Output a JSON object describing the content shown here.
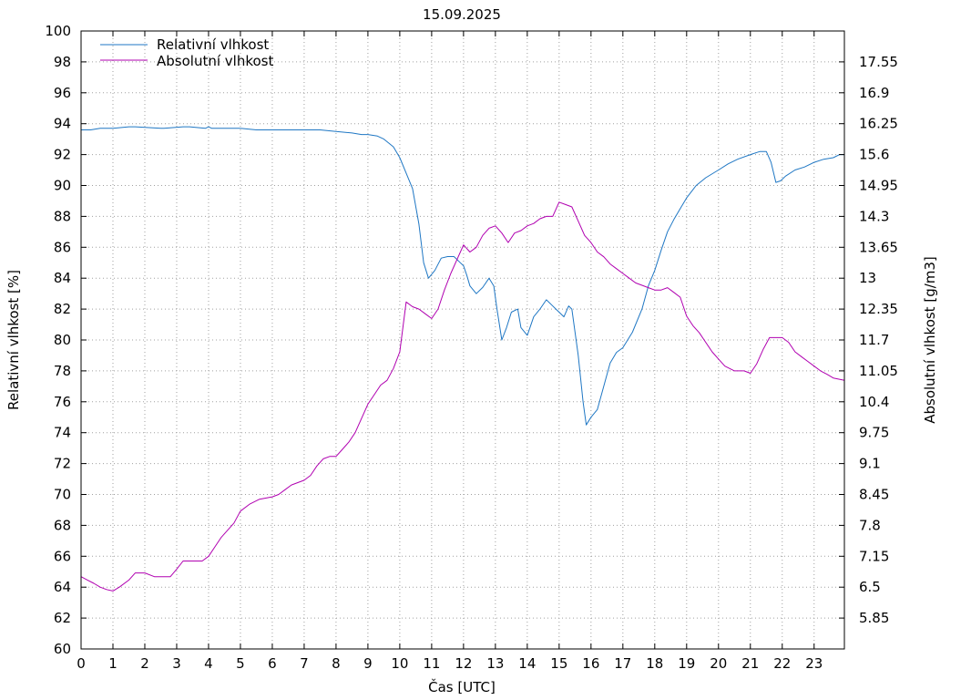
{
  "chart_data": {
    "type": "line",
    "title": "15.09.2025",
    "xlabel": "Čas [UTC]",
    "ylabel_left": "Relativní vlhkost [%]",
    "ylabel_right": "Absolutní vlhkost [g/m3]",
    "xlim": [
      0,
      23.95
    ],
    "ylim_left": [
      60,
      100
    ],
    "ylim_right": [
      5.2,
      18.2
    ],
    "x_ticks": [
      "0",
      "1",
      "2",
      "3",
      "4",
      "5",
      "6",
      "7",
      "8",
      "9",
      "10",
      "11",
      "12",
      "13",
      "14",
      "15",
      "16",
      "17",
      "18",
      "19",
      "20",
      "21",
      "22",
      "23"
    ],
    "y_ticks_left": [
      "60",
      "62",
      "64",
      "66",
      "68",
      "70",
      "72",
      "74",
      "76",
      "78",
      "80",
      "82",
      "84",
      "86",
      "88",
      "90",
      "92",
      "94",
      "96",
      "98",
      "100"
    ],
    "y_ticks_right": [
      "5.85",
      "6.5",
      "7.15",
      "7.8",
      "8.45",
      "9.1",
      "9.75",
      "10.4",
      "11.05",
      "11.7",
      "12.35",
      "13",
      "13.65",
      "14.3",
      "14.95",
      "15.6",
      "16.25",
      "16.9",
      "17.55"
    ],
    "grid": true,
    "legend_position": "top-left",
    "series": [
      {
        "name": "Relativní vlhkost",
        "axis": "left",
        "color": "#1f77c4",
        "x": [
          0,
          0.3,
          0.6,
          1.0,
          1.5,
          1.7,
          2.5,
          2.6,
          3.2,
          3.4,
          3.9,
          4.0,
          4.1,
          5.0,
          5.5,
          7.0,
          7.5,
          8.0,
          8.5,
          8.8,
          9.0,
          9.3,
          9.5,
          9.8,
          10.0,
          10.2,
          10.4,
          10.6,
          10.75,
          10.9,
          11.1,
          11.3,
          11.5,
          11.7,
          11.9,
          12.0,
          12.1,
          12.2,
          12.4,
          12.6,
          12.8,
          12.95,
          13.05,
          13.2,
          13.35,
          13.5,
          13.7,
          13.8,
          14.0,
          14.2,
          14.4,
          14.6,
          14.8,
          14.9,
          15.0,
          15.15,
          15.3,
          15.4,
          15.6,
          15.75,
          15.85,
          16.0,
          16.2,
          16.4,
          16.6,
          16.8,
          17.0,
          17.3,
          17.6,
          17.8,
          18.0,
          18.2,
          18.4,
          18.6,
          18.8,
          19.0,
          19.3,
          19.6,
          20.0,
          20.3,
          20.6,
          21.0,
          21.3,
          21.5,
          21.65,
          21.8,
          21.95,
          22.1,
          22.4,
          22.7,
          23.0,
          23.3,
          23.6,
          23.8,
          23.95
        ],
        "y": [
          93.6,
          93.6,
          93.7,
          93.7,
          93.8,
          93.8,
          93.7,
          93.7,
          93.8,
          93.8,
          93.7,
          93.8,
          93.7,
          93.7,
          93.6,
          93.6,
          93.6,
          93.5,
          93.4,
          93.3,
          93.3,
          93.2,
          93.0,
          92.5,
          91.8,
          90.8,
          89.8,
          87.5,
          85.0,
          84.0,
          84.5,
          85.3,
          85.4,
          85.4,
          85.0,
          84.8,
          84.2,
          83.5,
          83.0,
          83.4,
          84.0,
          83.5,
          82.0,
          80.0,
          80.8,
          81.8,
          82.0,
          80.8,
          80.3,
          81.5,
          82.0,
          82.6,
          82.2,
          82.0,
          81.8,
          81.5,
          82.2,
          82.0,
          79.0,
          76.0,
          74.5,
          75.0,
          75.5,
          77.0,
          78.5,
          79.2,
          79.5,
          80.5,
          82.0,
          83.5,
          84.5,
          85.8,
          87.0,
          87.8,
          88.5,
          89.2,
          90.0,
          90.5,
          91.0,
          91.4,
          91.7,
          92.0,
          92.2,
          92.2,
          91.5,
          90.2,
          90.3,
          90.6,
          91.0,
          91.2,
          91.5,
          91.7,
          91.8,
          92.0,
          92.0
        ]
      },
      {
        "name": "Absolutní vlhkost",
        "axis": "right",
        "color": "#b000b0",
        "x": [
          0,
          0.2,
          0.4,
          0.6,
          0.8,
          1.0,
          1.2,
          1.5,
          1.7,
          2.0,
          2.3,
          2.6,
          2.8,
          3.0,
          3.2,
          3.5,
          3.8,
          4.0,
          4.2,
          4.4,
          4.6,
          4.8,
          5.0,
          5.3,
          5.6,
          6.0,
          6.2,
          6.4,
          6.6,
          6.8,
          7.0,
          7.2,
          7.4,
          7.6,
          7.8,
          8.0,
          8.2,
          8.4,
          8.6,
          8.8,
          9.0,
          9.2,
          9.4,
          9.6,
          9.8,
          10.0,
          10.2,
          10.4,
          10.6,
          10.8,
          11.0,
          11.2,
          11.4,
          11.6,
          11.8,
          12.0,
          12.2,
          12.4,
          12.6,
          12.8,
          13.0,
          13.2,
          13.4,
          13.6,
          13.8,
          14.0,
          14.2,
          14.4,
          14.6,
          14.8,
          15.0,
          15.2,
          15.4,
          15.6,
          15.8,
          16.0,
          16.2,
          16.4,
          16.6,
          16.8,
          17.0,
          17.2,
          17.4,
          17.6,
          17.8,
          18.0,
          18.2,
          18.4,
          18.6,
          18.8,
          19.0,
          19.2,
          19.4,
          19.6,
          19.8,
          20.0,
          20.2,
          20.5,
          20.8,
          21.0,
          21.2,
          21.4,
          21.6,
          21.8,
          22.0,
          22.2,
          22.4,
          22.6,
          22.8,
          23.0,
          23.2,
          23.4,
          23.6,
          23.95
        ],
        "y": [
          6.72,
          6.65,
          6.58,
          6.5,
          6.45,
          6.42,
          6.5,
          6.65,
          6.8,
          6.8,
          6.72,
          6.72,
          6.72,
          6.88,
          7.05,
          7.05,
          7.05,
          7.15,
          7.35,
          7.55,
          7.7,
          7.85,
          8.1,
          8.25,
          8.35,
          8.4,
          8.45,
          8.55,
          8.65,
          8.7,
          8.75,
          8.85,
          9.05,
          9.2,
          9.25,
          9.25,
          9.4,
          9.55,
          9.75,
          10.05,
          10.35,
          10.55,
          10.75,
          10.85,
          11.1,
          11.45,
          12.5,
          12.4,
          12.35,
          12.25,
          12.15,
          12.35,
          12.75,
          13.1,
          13.4,
          13.7,
          13.55,
          13.65,
          13.9,
          14.05,
          14.1,
          13.95,
          13.75,
          13.95,
          14.0,
          14.1,
          14.15,
          14.25,
          14.3,
          14.3,
          14.6,
          14.55,
          14.5,
          14.2,
          13.9,
          13.75,
          13.55,
          13.45,
          13.3,
          13.2,
          13.1,
          13.0,
          12.9,
          12.85,
          12.8,
          12.75,
          12.75,
          12.8,
          12.7,
          12.6,
          12.2,
          12.0,
          11.85,
          11.65,
          11.45,
          11.3,
          11.15,
          11.05,
          11.05,
          11.0,
          11.2,
          11.5,
          11.75,
          11.75,
          11.75,
          11.65,
          11.45,
          11.35,
          11.25,
          11.15,
          11.05,
          10.98,
          10.9,
          10.85
        ]
      }
    ]
  }
}
